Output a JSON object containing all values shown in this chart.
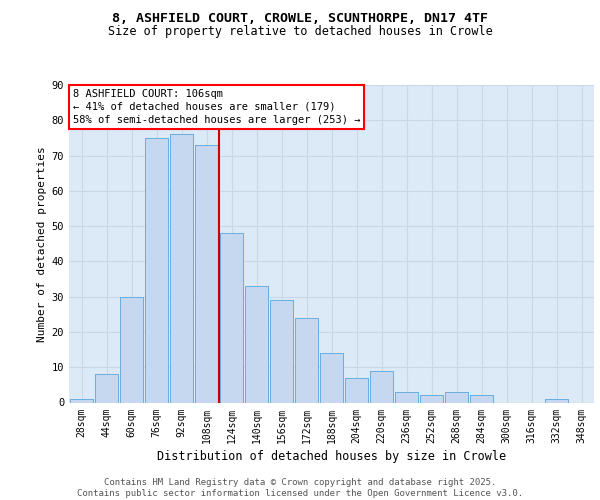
{
  "title_line1": "8, ASHFIELD COURT, CROWLE, SCUNTHORPE, DN17 4TF",
  "title_line2": "Size of property relative to detached houses in Crowle",
  "xlabel": "Distribution of detached houses by size in Crowle",
  "ylabel": "Number of detached properties",
  "bar_labels": [
    "28sqm",
    "44sqm",
    "60sqm",
    "76sqm",
    "92sqm",
    "108sqm",
    "124sqm",
    "140sqm",
    "156sqm",
    "172sqm",
    "188sqm",
    "204sqm",
    "220sqm",
    "236sqm",
    "252sqm",
    "268sqm",
    "284sqm",
    "300sqm",
    "316sqm",
    "332sqm",
    "348sqm"
  ],
  "bar_values": [
    1,
    8,
    30,
    75,
    76,
    73,
    48,
    33,
    29,
    24,
    14,
    7,
    9,
    3,
    2,
    3,
    2,
    0,
    0,
    1,
    0
  ],
  "bar_color": "#c5d8ef",
  "bar_edge_color": "#6aaee0",
  "grid_color": "#c8d8e8",
  "background_color": "#dce9f7",
  "vline_color": "#cc0000",
  "vline_x": 5.5,
  "annotation_text": "8 ASHFIELD COURT: 106sqm\n← 41% of detached houses are smaller (179)\n58% of semi-detached houses are larger (253) →",
  "ylim": [
    0,
    90
  ],
  "yticks": [
    0,
    10,
    20,
    30,
    40,
    50,
    60,
    70,
    80,
    90
  ],
  "footer_text": "Contains HM Land Registry data © Crown copyright and database right 2025.\nContains public sector information licensed under the Open Government Licence v3.0.",
  "title_fontsize": 9.5,
  "subtitle_fontsize": 8.5,
  "ylabel_fontsize": 8,
  "xlabel_fontsize": 8.5,
  "tick_fontsize": 7,
  "annot_fontsize": 7.5,
  "footer_fontsize": 6.5
}
